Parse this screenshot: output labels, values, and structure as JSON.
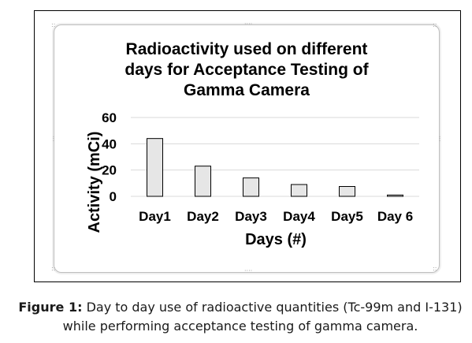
{
  "chart_data": {
    "type": "bar",
    "title": "Radioactivity used on different days for Acceptance Testing of Gamma Camera",
    "title_lines": [
      "Radioactivity used on different",
      "days for Acceptance Testing of",
      "Gamma Camera"
    ],
    "categories": [
      "Day1",
      "Day2",
      "Day3",
      "Day4",
      "Day5",
      "Day 6"
    ],
    "values": [
      44,
      23,
      14,
      9,
      7.5,
      1
    ],
    "xlabel": "Days (#)",
    "ylabel": "Activity (mCi)",
    "ylim": [
      0,
      60
    ],
    "yticks": [
      "0",
      "20",
      "40",
      "60"
    ],
    "grid": true,
    "bar_color": "#e6e6e6",
    "bar_edge_color": "#000000"
  },
  "caption": {
    "label": "Figure 1:",
    "text": " Day to day use of radioactive quantities (Tc-99m and I-131) while performing acceptance testing of gamma camera."
  }
}
